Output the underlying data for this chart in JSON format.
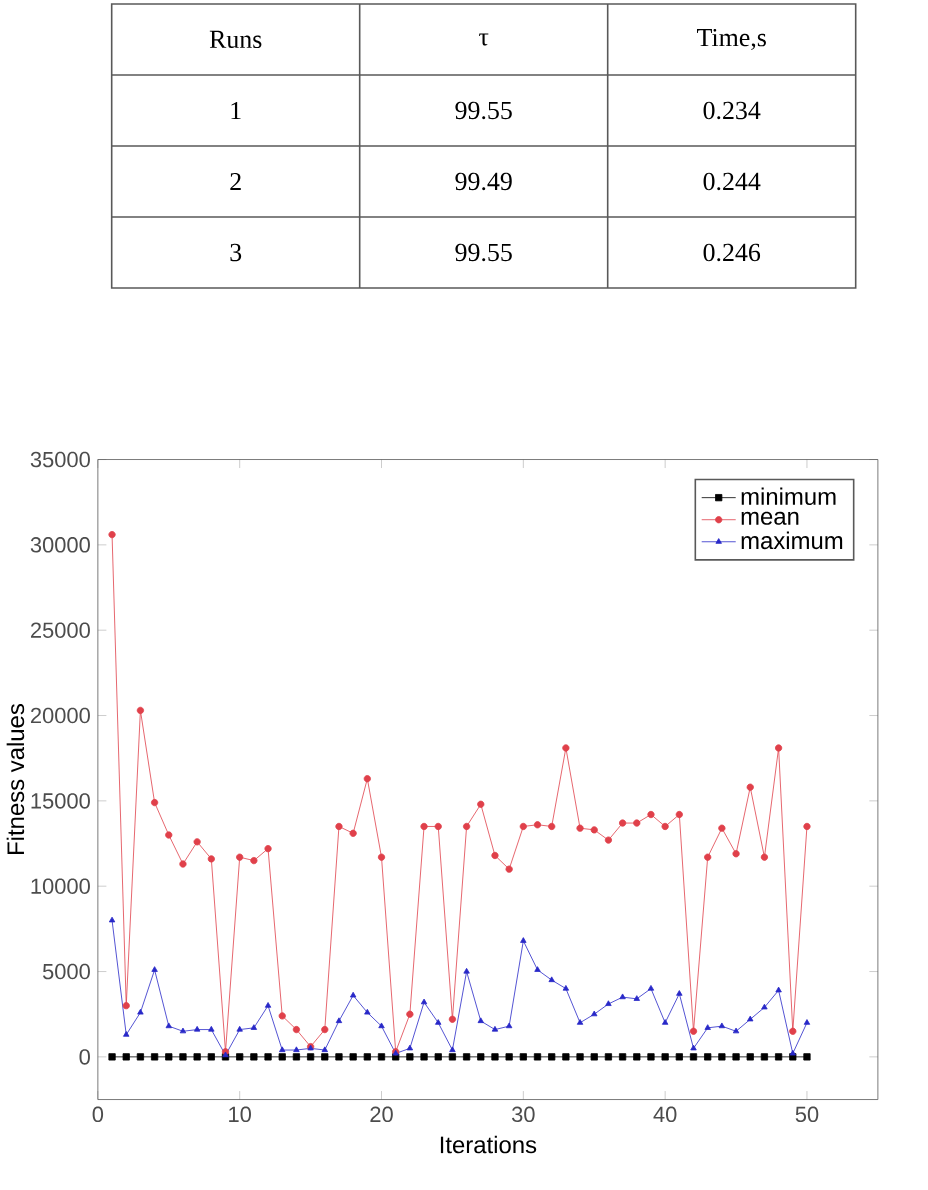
{
  "chart_data": [
    {
      "type": "other",
      "categories": [
        "Runs",
        "τ",
        "Time,s"
      ],
      "annotations": [
        "1",
        "99.55",
        "0.234",
        "2",
        "99.49",
        "0.244",
        "3",
        "99.55",
        "0.246"
      ]
    },
    {
      "type": "line",
      "xlabel": "Iterations",
      "ylabel": "Fitness values",
      "x": [
        1,
        2,
        3,
        4,
        5,
        6,
        7,
        8,
        9,
        10,
        11,
        12,
        13,
        14,
        15,
        16,
        17,
        18,
        19,
        20,
        21,
        22,
        23,
        24,
        25,
        26,
        27,
        28,
        29,
        30,
        31,
        32,
        33,
        34,
        35,
        36,
        37,
        38,
        39,
        40,
        41,
        42,
        43,
        44,
        45,
        46,
        47,
        48,
        49,
        50
      ],
      "xlim": [
        0,
        55
      ],
      "xticks": [
        0,
        10,
        20,
        30,
        40,
        50
      ],
      "ylim": [
        -2500,
        35000
      ],
      "yticks": [
        0,
        5000,
        10000,
        15000,
        20000,
        25000,
        30000,
        35000
      ],
      "grid": false,
      "legend": "top right",
      "series": [
        {
          "name": "minimum",
          "color": "#000000",
          "marker": "square",
          "values": [
            0,
            0,
            0,
            0,
            0,
            0,
            0,
            0,
            0,
            0,
            0,
            0,
            0,
            0,
            0,
            0,
            0,
            0,
            0,
            0,
            0,
            0,
            0,
            0,
            0,
            0,
            0,
            0,
            0,
            0,
            0,
            0,
            0,
            0,
            0,
            0,
            0,
            0,
            0,
            0,
            0,
            0,
            0,
            0,
            0,
            0,
            0,
            0,
            0,
            0
          ]
        },
        {
          "name": "mean",
          "color": "#e0404a",
          "marker": "circle",
          "values": [
            30600,
            3000,
            20300,
            14900,
            13000,
            11300,
            12600,
            11600,
            300,
            11700,
            11500,
            12200,
            2400,
            1600,
            600,
            1600,
            13500,
            13100,
            16300,
            11700,
            300,
            2500,
            13500,
            13500,
            2200,
            13500,
            14800,
            11800,
            11000,
            13500,
            13600,
            13500,
            18100,
            13400,
            13300,
            12700,
            13700,
            13700,
            14200,
            13500,
            14200,
            1500,
            11700,
            13400,
            11900,
            15800,
            11700,
            18100,
            1500,
            13500
          ]
        },
        {
          "name": "maximum",
          "color": "#2828c8",
          "marker": "triangle",
          "values": [
            8000,
            1300,
            2600,
            5100,
            1800,
            1500,
            1600,
            1600,
            100,
            1600,
            1700,
            3000,
            400,
            400,
            500,
            400,
            2100,
            3600,
            2600,
            1800,
            200,
            500,
            3200,
            2000,
            400,
            5000,
            2100,
            1600,
            1800,
            6800,
            5100,
            4500,
            4000,
            2000,
            2500,
            3100,
            3500,
            3400,
            4000,
            2000,
            3700,
            500,
            1700,
            1800,
            1500,
            2200,
            2900,
            3900,
            200,
            2000
          ]
        }
      ]
    }
  ]
}
